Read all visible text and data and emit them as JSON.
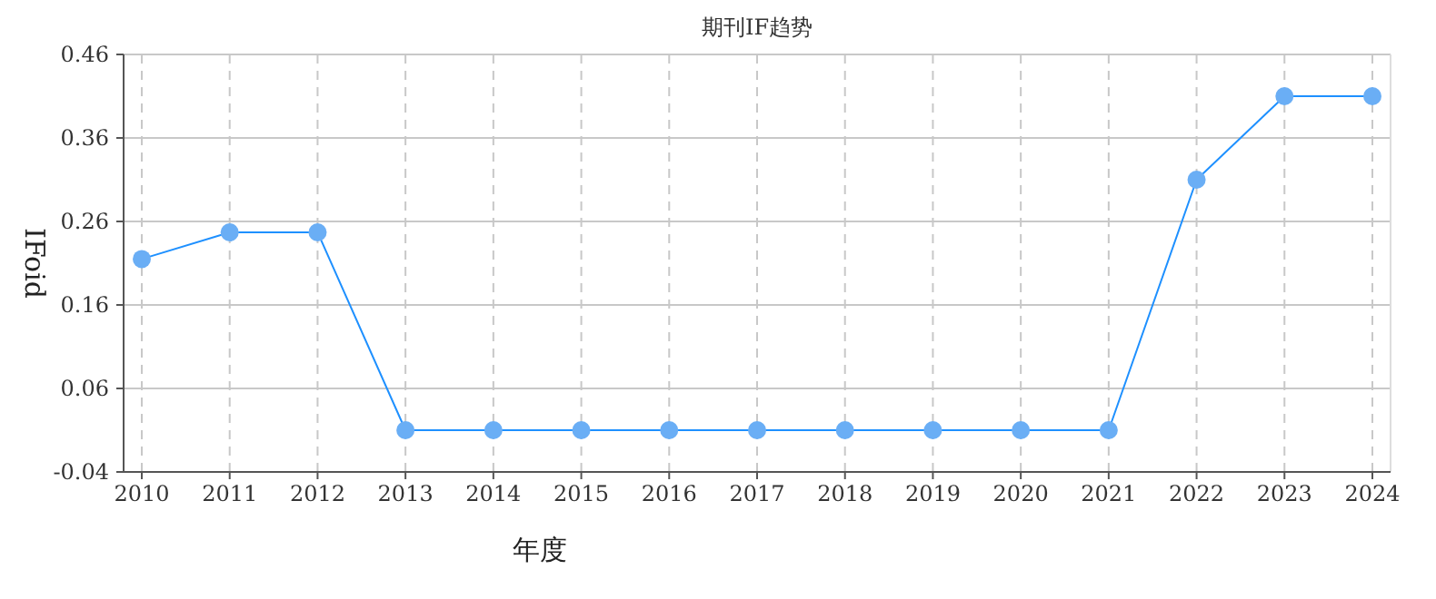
{
  "chart_data": {
    "type": "line",
    "title": "期刊IF趋势",
    "xlabel": "年度",
    "ylabel": "IFoid",
    "categories": [
      "2010",
      "2011",
      "2012",
      "2013",
      "2014",
      "2015",
      "2016",
      "2017",
      "2018",
      "2019",
      "2020",
      "2021",
      "2022",
      "2023",
      "2024"
    ],
    "series": [
      {
        "color": "#1e90ff",
        "values": [
          0.215,
          0.247,
          0.247,
          0.01,
          0.01,
          0.01,
          0.01,
          0.01,
          0.01,
          0.01,
          0.01,
          0.01,
          0.31,
          0.41,
          0.41
        ]
      }
    ],
    "ylim": [
      -0.04,
      0.46
    ],
    "yticks": [
      -0.04,
      0.06,
      0.16,
      0.26,
      0.36,
      0.46
    ],
    "grid": true,
    "marker": "circle",
    "line_style": "solid"
  }
}
